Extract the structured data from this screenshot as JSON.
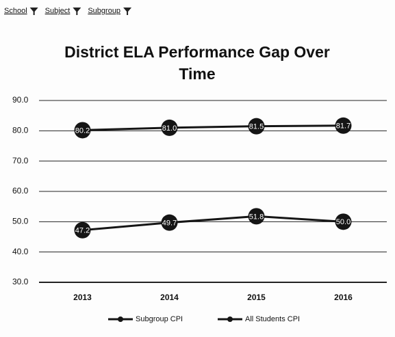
{
  "chart_data": {
    "type": "line",
    "filters": [
      "School",
      "Subject",
      "Subgroup"
    ],
    "title": "District ELA Performance Gap Over Time",
    "categories": [
      "2013",
      "2014",
      "2015",
      "2016"
    ],
    "series": [
      {
        "name": "Subgroup CPI",
        "color": "#151515",
        "values": [
          47.2,
          49.7,
          51.8,
          50
        ],
        "value_labels": [
          "47.2",
          "49.7",
          "51.8",
          "50.0"
        ]
      },
      {
        "name": "All Students CPI",
        "color": "#151515",
        "values": [
          80.2,
          81,
          81.5,
          81.7
        ],
        "value_labels": [
          "80.2",
          "81.0",
          "81.5",
          "81.7"
        ]
      }
    ],
    "ylim": [
      30,
      90
    ],
    "yticks": [
      {
        "value": 30,
        "label": "30.0"
      },
      {
        "value": 40,
        "label": "40.0"
      },
      {
        "value": 50,
        "label": "50.0"
      },
      {
        "value": 60,
        "label": "60.0"
      },
      {
        "value": 70,
        "label": "70.0"
      },
      {
        "value": 80,
        "label": "80.0"
      },
      {
        "value": 90,
        "label": "90.0"
      }
    ],
    "grid": true,
    "legend": "bottom"
  }
}
